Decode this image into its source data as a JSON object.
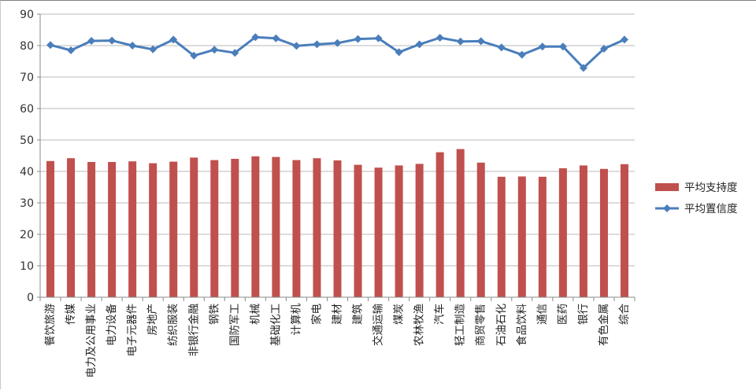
{
  "chart_data": {
    "type": "bar",
    "categories": [
      "餐饮旅游",
      "传媒",
      "电力及公用事业",
      "电力设备",
      "电子元器件",
      "房地产",
      "纺织服装",
      "非银行金融",
      "钢铁",
      "国防军工",
      "机械",
      "基础化工",
      "计算机",
      "家电",
      "建材",
      "建筑",
      "交通运输",
      "煤炭",
      "农林牧渔",
      "汽车",
      "轻工制造",
      "商贸零售",
      "石油石化",
      "食品饮料",
      "通信",
      "医药",
      "银行",
      "有色金属",
      "综合"
    ],
    "series": [
      {
        "name": "平均支持度",
        "type": "bar",
        "color": "#c0504d",
        "values": [
          43.3,
          44.2,
          43.0,
          43.0,
          43.2,
          42.6,
          43.1,
          44.4,
          43.6,
          44.0,
          44.8,
          44.6,
          43.6,
          44.2,
          43.5,
          42.1,
          41.2,
          41.9,
          42.4,
          46.1,
          47.1,
          42.8,
          38.3,
          38.4,
          38.3,
          41.0,
          41.9,
          40.8,
          42.3
        ]
      },
      {
        "name": "平均置信度",
        "type": "line",
        "color": "#4a7ebb",
        "values": [
          80.2,
          78.5,
          81.5,
          81.6,
          80.0,
          78.8,
          81.9,
          76.8,
          78.7,
          77.7,
          82.7,
          82.3,
          79.9,
          80.4,
          80.8,
          82.1,
          82.3,
          77.9,
          80.4,
          82.5,
          81.3,
          81.4,
          79.4,
          77.1,
          79.7,
          79.7,
          72.9,
          79.0,
          81.9
        ]
      }
    ],
    "y_axis": {
      "min": 0,
      "max": 90,
      "step": 10,
      "tick_labels": [
        "0",
        "10",
        "20",
        "30",
        "40",
        "50",
        "60",
        "70",
        "80",
        "90"
      ]
    },
    "grid": true,
    "legend_position": "right"
  }
}
